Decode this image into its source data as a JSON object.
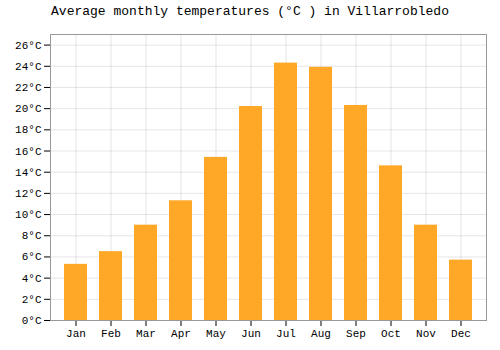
{
  "chart_data": {
    "type": "bar",
    "title": "Average monthly temperatures (°C ) in Villarrobledo",
    "categories": [
      "Jan",
      "Feb",
      "Mar",
      "Apr",
      "May",
      "Jun",
      "Jul",
      "Aug",
      "Sep",
      "Oct",
      "Nov",
      "Dec"
    ],
    "values": [
      5.3,
      6.5,
      9.0,
      11.3,
      15.4,
      20.2,
      24.3,
      23.9,
      20.3,
      14.6,
      9.0,
      5.7
    ],
    "color": "#FFA726",
    "ylim": [
      0,
      27
    ],
    "yticks": [
      {
        "value": 0,
        "label": "0°C"
      },
      {
        "value": 2,
        "label": "2°C"
      },
      {
        "value": 4,
        "label": "4°C"
      },
      {
        "value": 6,
        "label": "6°C"
      },
      {
        "value": 8,
        "label": "8°C"
      },
      {
        "value": 10,
        "label": "10°C"
      },
      {
        "value": 12,
        "label": "12°C"
      },
      {
        "value": 14,
        "label": "14°C"
      },
      {
        "value": 16,
        "label": "16°C"
      },
      {
        "value": 18,
        "label": "18°C"
      },
      {
        "value": 20,
        "label": "20°C"
      },
      {
        "value": 22,
        "label": "22°C"
      },
      {
        "value": 24,
        "label": "24°C"
      },
      {
        "value": 26,
        "label": "26°C"
      }
    ],
    "grid": true
  }
}
